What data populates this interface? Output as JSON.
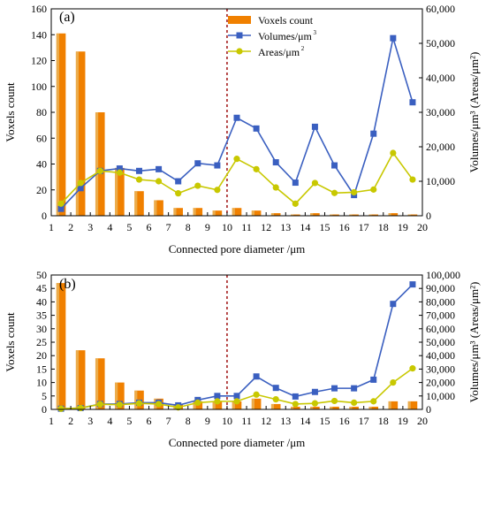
{
  "figure": {
    "background": "#ffffff"
  },
  "styles": {
    "bar_color": "#F08000",
    "bar_highlight": "#E8D08A",
    "volume_color": "#3A5FC0",
    "area_color": "#C8C800",
    "vline_color": "#A01010"
  },
  "chart_data": [
    {
      "type": "bar",
      "panel_label": "(a)",
      "x": [
        1.5,
        2.5,
        3.5,
        4.5,
        5.5,
        6.5,
        7.5,
        8.5,
        9.5,
        10.5,
        11.5,
        12.5,
        13.5,
        14.5,
        15.5,
        16.5,
        17.5,
        18.5,
        19.5
      ],
      "xlim": [
        1,
        20
      ],
      "xticks": [
        "1",
        "2",
        "3",
        "4",
        "5",
        "6",
        "7",
        "8",
        "9",
        "10",
        "11",
        "12",
        "13",
        "14",
        "15",
        "16",
        "17",
        "18",
        "19",
        "20"
      ],
      "xlabel": "Connected pore diameter /μm",
      "ylabel": "Voxels count",
      "ylim": [
        0,
        160
      ],
      "yticks": [
        "0",
        "20",
        "40",
        "60",
        "80",
        "100",
        "120",
        "140",
        "160"
      ],
      "y2label": "Volumes/μm³ (Areas/μm²)",
      "y2lim": [
        0,
        60000
      ],
      "y2ticks": [
        "0",
        "10,000",
        "20,000",
        "30,000",
        "40,000",
        "50,000",
        "60,000"
      ],
      "vline_x": 10,
      "legend": {
        "placement": "top-right",
        "bar": "Voxels count",
        "volume": "Volumes/μm",
        "volume_sup": "3",
        "area": "Areas/μm",
        "area_sup": "2"
      },
      "series": [
        {
          "name": "Voxels count",
          "kind": "bar",
          "axis": "left",
          "values": [
            141,
            127,
            80,
            37,
            19,
            12,
            6,
            6,
            4,
            6,
            4,
            2,
            1,
            2,
            1,
            1,
            1,
            2,
            1
          ]
        },
        {
          "name": "Volumes/μm³",
          "kind": "line",
          "axis": "right",
          "marker": "square",
          "values": [
            2000,
            8000,
            13000,
            13700,
            13000,
            13500,
            10000,
            15200,
            14600,
            28400,
            25300,
            15500,
            9600,
            25800,
            14600,
            6000,
            23800,
            51500,
            32900
          ]
        },
        {
          "name": "Areas/μm²",
          "kind": "line",
          "axis": "right",
          "marker": "circle",
          "values": [
            3500,
            9500,
            13000,
            12500,
            10500,
            10000,
            6500,
            8700,
            7500,
            16500,
            13500,
            8200,
            3500,
            9500,
            6600,
            6800,
            7600,
            18200,
            10500
          ]
        }
      ]
    },
    {
      "type": "bar",
      "panel_label": "(b)",
      "x": [
        1.5,
        2.5,
        3.5,
        4.5,
        5.5,
        6.5,
        7.5,
        8.5,
        9.5,
        10.5,
        11.5,
        12.5,
        13.5,
        14.5,
        15.5,
        16.5,
        17.5,
        18.5,
        19.5
      ],
      "xlim": [
        1,
        20
      ],
      "xticks": [
        "1",
        "2",
        "3",
        "4",
        "5",
        "6",
        "7",
        "8",
        "9",
        "10",
        "11",
        "12",
        "13",
        "14",
        "15",
        "16",
        "17",
        "18",
        "19",
        "20"
      ],
      "xlabel": "Connected pore diameter /μm",
      "ylabel": "Voxels count",
      "ylim": [
        0,
        50
      ],
      "yticks": [
        "0",
        "5",
        "10",
        "15",
        "20",
        "25",
        "30",
        "35",
        "40",
        "45",
        "50"
      ],
      "y2label": "Volumes/μm³ (Areas/μm²)",
      "y2lim": [
        0,
        100000
      ],
      "y2ticks": [
        "0",
        "10,000",
        "20,000",
        "30,000",
        "40,000",
        "50,000",
        "60,000",
        "70,000",
        "80,000",
        "90,000",
        "100,000"
      ],
      "vline_x": 10,
      "series": [
        {
          "name": "Voxels count",
          "kind": "bar",
          "axis": "left",
          "values": [
            47,
            22,
            19,
            10,
            7,
            4,
            2,
            3,
            3,
            3,
            4,
            2,
            1,
            1,
            1,
            1,
            1,
            3,
            3
          ]
        },
        {
          "name": "Volumes/μm³",
          "kind": "line",
          "axis": "right",
          "marker": "square",
          "values": [
            500,
            1000,
            4000,
            4000,
            5000,
            5000,
            3000,
            7000,
            10000,
            10000,
            24500,
            16000,
            9600,
            13000,
            15700,
            15700,
            22100,
            78500,
            93000
          ]
        },
        {
          "name": "Areas/μm²",
          "kind": "line",
          "axis": "right",
          "marker": "circle",
          "values": [
            500,
            1000,
            3800,
            3500,
            4500,
            4000,
            1500,
            5000,
            6000,
            6000,
            11000,
            7500,
            4000,
            4500,
            6300,
            5000,
            6000,
            20000,
            30500
          ]
        }
      ]
    }
  ]
}
